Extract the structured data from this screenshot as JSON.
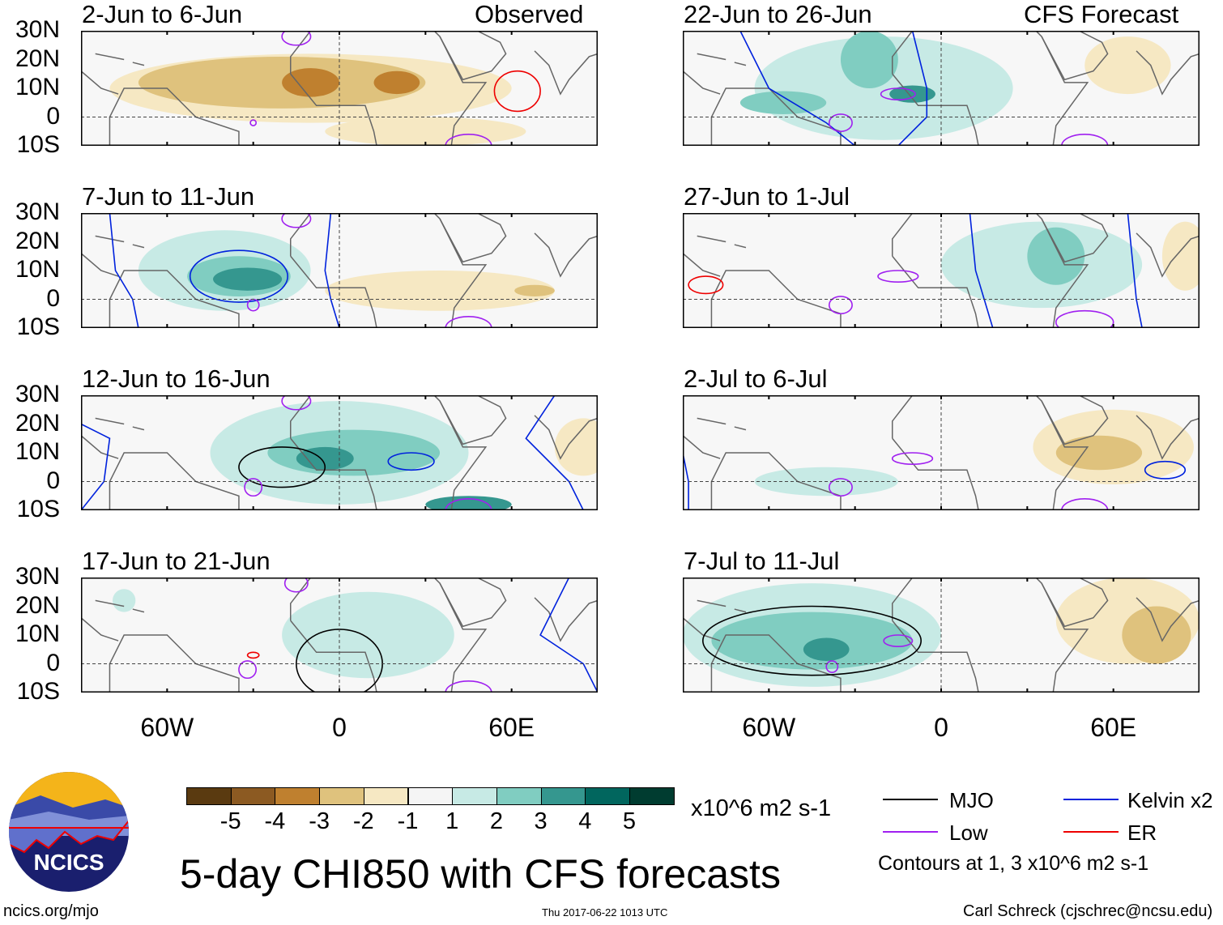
{
  "title": "5-day CHI850 with CFS forecasts",
  "website": "ncics.org/mjo",
  "timestamp": "Thu 2017-06-22 1013 UTC",
  "author": "Carl Schreck (cjschrec@ncsu.edu)",
  "logo_text": "NCICS",
  "labels": {
    "observed": "Observed",
    "forecast": "CFS Forecast"
  },
  "colorbar": {
    "unit": "x10^6 m2 s-1",
    "ticks": [
      "-5",
      "-4",
      "-3",
      "-2",
      "-1",
      "1",
      "2",
      "3",
      "4",
      "5"
    ],
    "colors": [
      "#5a3a10",
      "#8c5a22",
      "#bf802f",
      "#dfc27d",
      "#f6e8c3",
      "#f5f5f5",
      "#c7eae5",
      "#80cdc1",
      "#35978f",
      "#01665e",
      "#003c30"
    ]
  },
  "legend": {
    "items": [
      {
        "label": "MJO",
        "color": "#000000"
      },
      {
        "label": "Kelvin x2",
        "color": "#0022dd"
      },
      {
        "label": "Low",
        "color": "#a020f0"
      },
      {
        "label": "ER",
        "color": "#ee0000"
      }
    ],
    "note": "Contours at 1, 3 x10^6 m2 s-1"
  },
  "axes": {
    "lat_ticks": [
      "30N",
      "20N",
      "10N",
      "0",
      "10S"
    ],
    "lon_ticks": [
      "60W",
      "0",
      "60E"
    ]
  },
  "chart_data": {
    "type": "heatmap",
    "lon_range": [
      -90,
      90
    ],
    "lat_range": [
      -10,
      30
    ],
    "panels": [
      {
        "title": "2-Jun to 6-Jun",
        "blobs": [
          [
            -10,
            10,
            70,
            12,
            -1
          ],
          [
            30,
            -5,
            35,
            5,
            -1
          ],
          [
            -20,
            12,
            50,
            9,
            -2
          ],
          [
            -10,
            12,
            10,
            5,
            -3
          ],
          [
            20,
            12,
            8,
            4,
            -3
          ]
        ],
        "contours": [
          [
            62,
            9,
            8,
            7,
            "ER"
          ],
          [
            -15,
            28,
            5,
            3,
            "Low"
          ],
          [
            45,
            -10,
            8,
            4,
            "Low"
          ],
          [
            -30,
            -2,
            1,
            1,
            "Low"
          ]
        ]
      },
      {
        "title": "22-Jun to 26-Jun",
        "blobs": [
          [
            -20,
            10,
            45,
            18,
            1
          ],
          [
            65,
            18,
            15,
            10,
            -1
          ],
          [
            -25,
            20,
            10,
            10,
            2
          ],
          [
            -55,
            5,
            15,
            4,
            2
          ],
          [
            -10,
            8,
            8,
            3,
            3
          ]
        ],
        "contours": [
          [
            -35,
            -2,
            4,
            3,
            "Low"
          ],
          [
            -15,
            8,
            6,
            2,
            "Low"
          ],
          [
            50,
            -10,
            8,
            4,
            "Low"
          ]
        ],
        "lines": [
          [
            [
              -70,
              30
            ],
            [
              -60,
              10
            ],
            [
              -40,
              -2
            ],
            [
              -30,
              -10
            ]
          ],
          [
            [
              -10,
              30
            ],
            [
              -5,
              10
            ],
            [
              -5,
              0
            ],
            [
              -15,
              -10
            ]
          ]
        ]
      },
      {
        "title": "7-Jun to 11-Jun",
        "blobs": [
          [
            -40,
            10,
            30,
            14,
            1
          ],
          [
            35,
            3,
            40,
            7,
            -1
          ],
          [
            -35,
            8,
            18,
            7,
            2
          ],
          [
            -32,
            7,
            12,
            4,
            3
          ],
          [
            68,
            3,
            7,
            2,
            -2
          ]
        ],
        "contours": [
          [
            -35,
            8,
            17,
            9,
            "Kelvin x2"
          ],
          [
            -30,
            -2,
            2,
            2,
            "Low"
          ],
          [
            -15,
            28,
            5,
            3,
            "Low"
          ],
          [
            45,
            -10,
            8,
            4,
            "Low"
          ]
        ],
        "lines": [
          [
            [
              -80,
              30
            ],
            [
              -78,
              10
            ],
            [
              -72,
              0
            ],
            [
              -70,
              -10
            ]
          ],
          [
            [
              -3,
              30
            ],
            [
              -5,
              10
            ],
            [
              -3,
              0
            ],
            [
              0,
              -10
            ]
          ]
        ]
      },
      {
        "title": "27-Jun to 1-Jul",
        "blobs": [
          [
            35,
            12,
            35,
            15,
            1
          ],
          [
            85,
            15,
            8,
            12,
            -1
          ],
          [
            40,
            15,
            10,
            10,
            2
          ]
        ],
        "contours": [
          [
            -15,
            8,
            7,
            2,
            "Low"
          ],
          [
            -35,
            -2,
            4,
            3,
            "Low"
          ],
          [
            50,
            -8,
            10,
            4,
            "Low"
          ],
          [
            -82,
            5,
            6,
            3,
            "ER"
          ]
        ],
        "lines": [
          [
            [
              10,
              30
            ],
            [
              12,
              10
            ],
            [
              15,
              0
            ],
            [
              18,
              -10
            ]
          ],
          [
            [
              65,
              30
            ],
            [
              67,
              10
            ],
            [
              68,
              0
            ],
            [
              70,
              -10
            ]
          ]
        ]
      },
      {
        "title": "12-Jun to 16-Jun",
        "blobs": [
          [
            0,
            10,
            45,
            18,
            1
          ],
          [
            85,
            12,
            10,
            10,
            -1
          ],
          [
            5,
            10,
            30,
            8,
            2
          ],
          [
            -5,
            8,
            10,
            4,
            3
          ],
          [
            45,
            -8,
            15,
            3,
            3
          ]
        ],
        "contours": [
          [
            -20,
            5,
            15,
            7,
            "MJO"
          ],
          [
            25,
            7,
            8,
            3,
            "Kelvin x2"
          ],
          [
            -30,
            -2,
            3,
            3,
            "Low"
          ],
          [
            -15,
            28,
            5,
            3,
            "Low"
          ],
          [
            45,
            -10,
            8,
            4,
            "Low"
          ]
        ],
        "lines": [
          [
            [
              -90,
              20
            ],
            [
              -80,
              15
            ],
            [
              -82,
              0
            ],
            [
              -90,
              -10
            ]
          ],
          [
            [
              75,
              30
            ],
            [
              65,
              15
            ],
            [
              80,
              0
            ],
            [
              85,
              -10
            ]
          ]
        ]
      },
      {
        "title": "2-Jul to 6-Jul",
        "blobs": [
          [
            60,
            12,
            28,
            13,
            -1
          ],
          [
            -40,
            0,
            25,
            5,
            1
          ],
          [
            55,
            10,
            15,
            6,
            -2
          ]
        ],
        "contours": [
          [
            -35,
            -2,
            4,
            3,
            "Low"
          ],
          [
            -10,
            8,
            7,
            2,
            "Low"
          ],
          [
            78,
            4,
            7,
            3,
            "Kelvin x2"
          ],
          [
            50,
            -10,
            8,
            4,
            "Low"
          ]
        ],
        "lines": [
          [
            [
              -90,
              10
            ],
            [
              -88,
              0
            ],
            [
              -88,
              -10
            ]
          ]
        ]
      },
      {
        "title": "17-Jun to 21-Jun",
        "blobs": [
          [
            10,
            10,
            30,
            15,
            1
          ],
          [
            -75,
            22,
            4,
            4,
            1
          ]
        ],
        "contours": [
          [
            0,
            0,
            15,
            12,
            "MJO"
          ],
          [
            -32,
            -2,
            3,
            3,
            "Low"
          ],
          [
            -15,
            28,
            4,
            3,
            "Low"
          ],
          [
            -30,
            3,
            2,
            1,
            "ER"
          ],
          [
            45,
            -10,
            8,
            4,
            "Low"
          ]
        ],
        "lines": [
          [
            [
              80,
              30
            ],
            [
              70,
              10
            ],
            [
              85,
              0
            ],
            [
              90,
              -10
            ]
          ]
        ]
      },
      {
        "title": "7-Jul to 11-Jul",
        "blobs": [
          [
            -45,
            10,
            45,
            18,
            1
          ],
          [
            65,
            15,
            25,
            15,
            -1
          ],
          [
            -45,
            8,
            35,
            10,
            2
          ],
          [
            75,
            10,
            12,
            10,
            -2
          ],
          [
            -40,
            5,
            8,
            4,
            3
          ]
        ],
        "contours": [
          [
            -45,
            8,
            38,
            12,
            "MJO"
          ],
          [
            -38,
            -1,
            2,
            2,
            "Low"
          ],
          [
            -15,
            8,
            5,
            2,
            "Low"
          ]
        ]
      }
    ]
  }
}
